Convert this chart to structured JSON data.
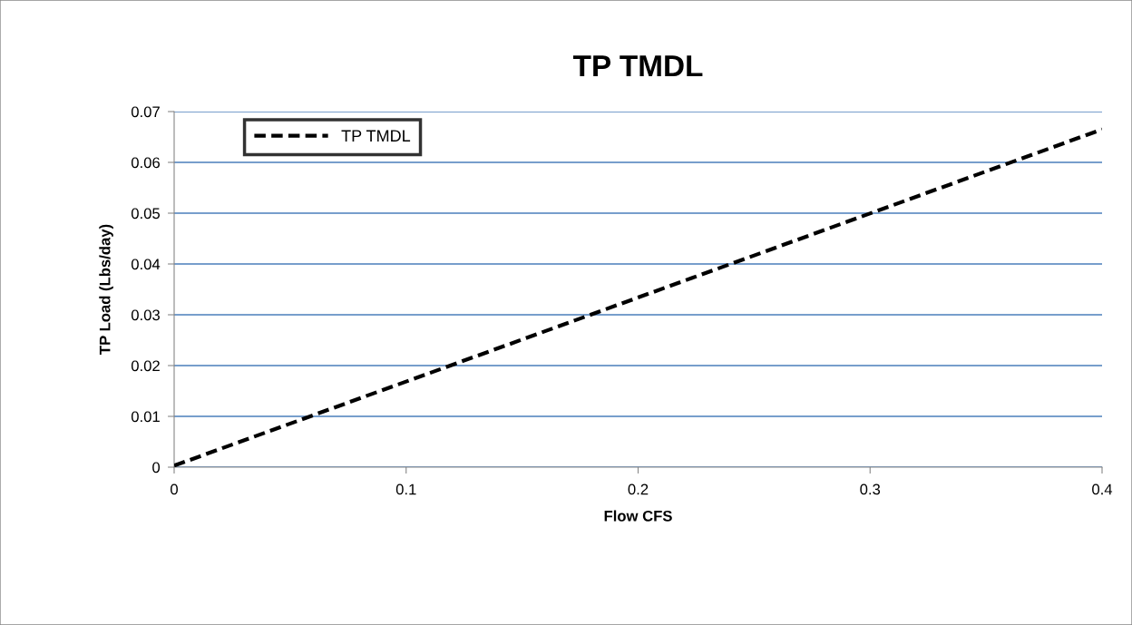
{
  "chart_data": {
    "type": "line",
    "title": "TP TMDL",
    "xlabel": "Flow CFS",
    "ylabel": "TP Load (Lbs/day)",
    "series": [
      {
        "name": "TP TMDL",
        "color": "#000000",
        "x": [
          0,
          0.4
        ],
        "values": [
          0.0003,
          0.0665
        ]
      }
    ],
    "xlim": [
      0,
      0.4
    ],
    "xticks": [
      0,
      0.1,
      0.2,
      0.3,
      0.4
    ],
    "ylim": [
      0,
      0.07
    ],
    "yticks": [
      0,
      0.01,
      0.02,
      0.03,
      0.04,
      0.05,
      0.06,
      0.07
    ],
    "grid": "y",
    "legend": "top left",
    "line_style": "dashed",
    "marker": "none"
  }
}
